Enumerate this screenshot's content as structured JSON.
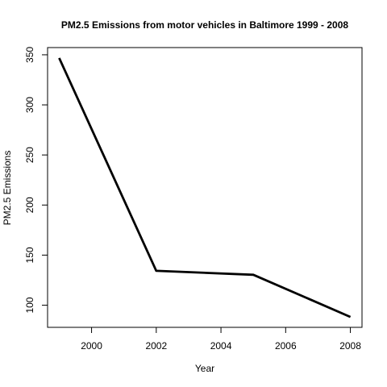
{
  "chart_data": {
    "type": "line",
    "title": "PM2.5 Emissions from motor vehicles in Baltimore 1999 - 2008",
    "xlabel": "Year",
    "ylabel": "PM2.5 Emissions",
    "x": [
      1999,
      2002,
      2005,
      2008
    ],
    "series": [
      {
        "values": [
          346.8,
          134.3,
          130.4,
          88.3
        ]
      }
    ],
    "xlim": [
      1998.64,
      2008.36
    ],
    "ylim": [
      77.9,
      357.2
    ],
    "xticks": [
      2000,
      2002,
      2004,
      2006,
      2008
    ],
    "yticks": [
      100,
      150,
      200,
      250,
      300,
      350
    ],
    "grid": false,
    "legend": "none",
    "line_color": "#000000"
  }
}
